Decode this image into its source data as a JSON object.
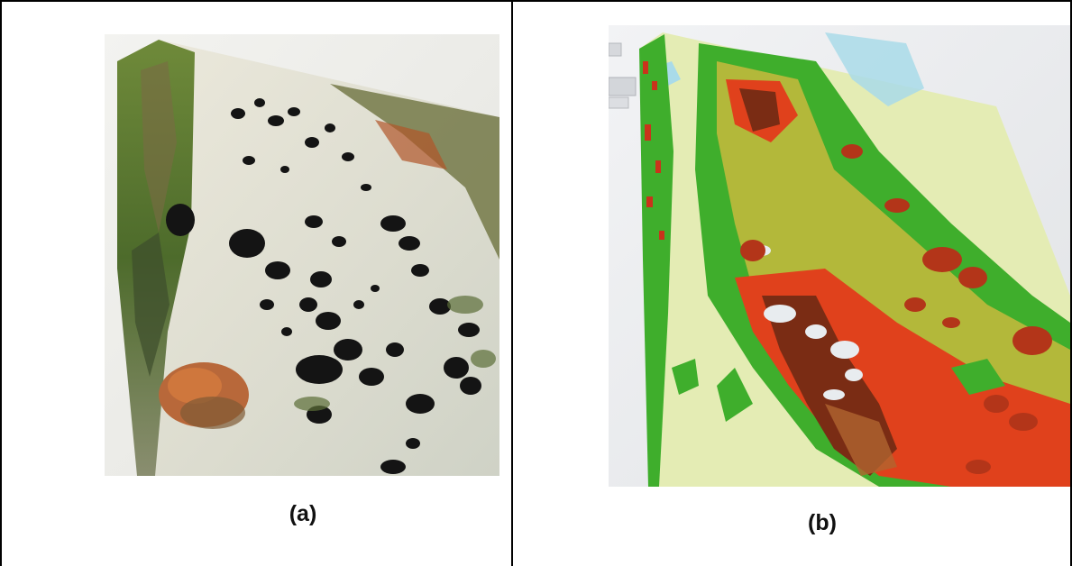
{
  "figure": {
    "panels": [
      {
        "caption": "(a)",
        "image": "photo-textured-3d-terrain-model"
      },
      {
        "caption": "(b)",
        "image": "elevation-colored-3d-terrain-model"
      }
    ],
    "colors": {
      "border": "#000000",
      "ground_pale": "#e6e9c4",
      "vegetation_green": "#3fae2c",
      "mid_olive": "#b3b83a",
      "high_red": "#e0411c",
      "peak_brown": "#7a2c14",
      "water_blue": "#a9dbe9"
    }
  }
}
